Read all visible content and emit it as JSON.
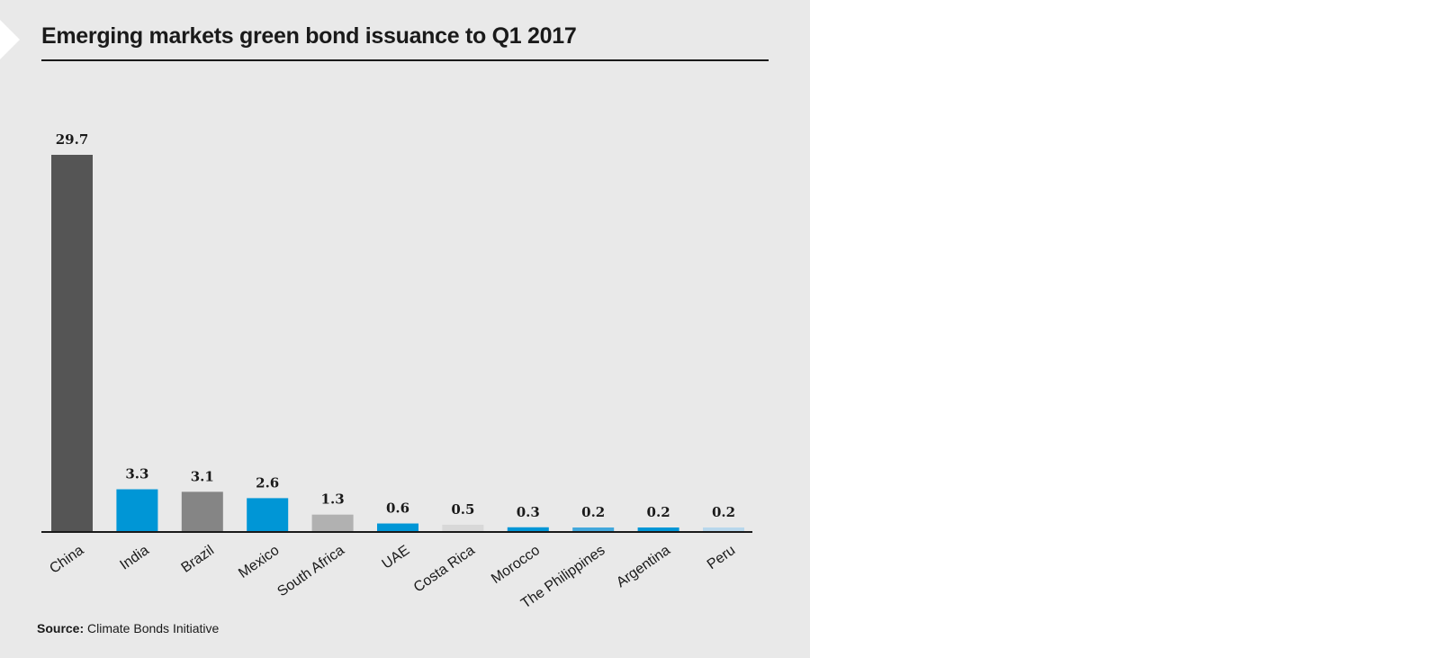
{
  "title": "Emerging markets green bond issuance to Q1 2017",
  "source": {
    "label": "Source:",
    "text": "Climate Bonds Initiative"
  },
  "chart_data": {
    "type": "bar",
    "title": "Emerging markets green bond issuance to Q1 2017",
    "xlabel": "",
    "ylabel": "",
    "ylim": [
      0,
      29.7
    ],
    "grid": false,
    "categories": [
      "China",
      "India",
      "Brazil",
      "Mexico",
      "South Africa",
      "UAE",
      "Costa Rica",
      "Morocco",
      "The Philippines",
      "Argentina",
      "Peru"
    ],
    "values": [
      29.7,
      3.3,
      3.1,
      2.6,
      1.3,
      0.6,
      0.5,
      0.3,
      0.2,
      0.2,
      0.2
    ],
    "value_labels": [
      "29.7",
      "3.3",
      "3.1",
      "2.6",
      "1.3",
      "0.6",
      "0.5",
      "0.3",
      "0.2",
      "0.2",
      "0.2"
    ],
    "colors": [
      "#555555",
      "#0096d6",
      "#858585",
      "#0096d6",
      "#b1b1b1",
      "#0096d6",
      "#d8d8d8",
      "#0096d6",
      "#42a8dc",
      "#0096d6",
      "#b8d7ec"
    ]
  }
}
